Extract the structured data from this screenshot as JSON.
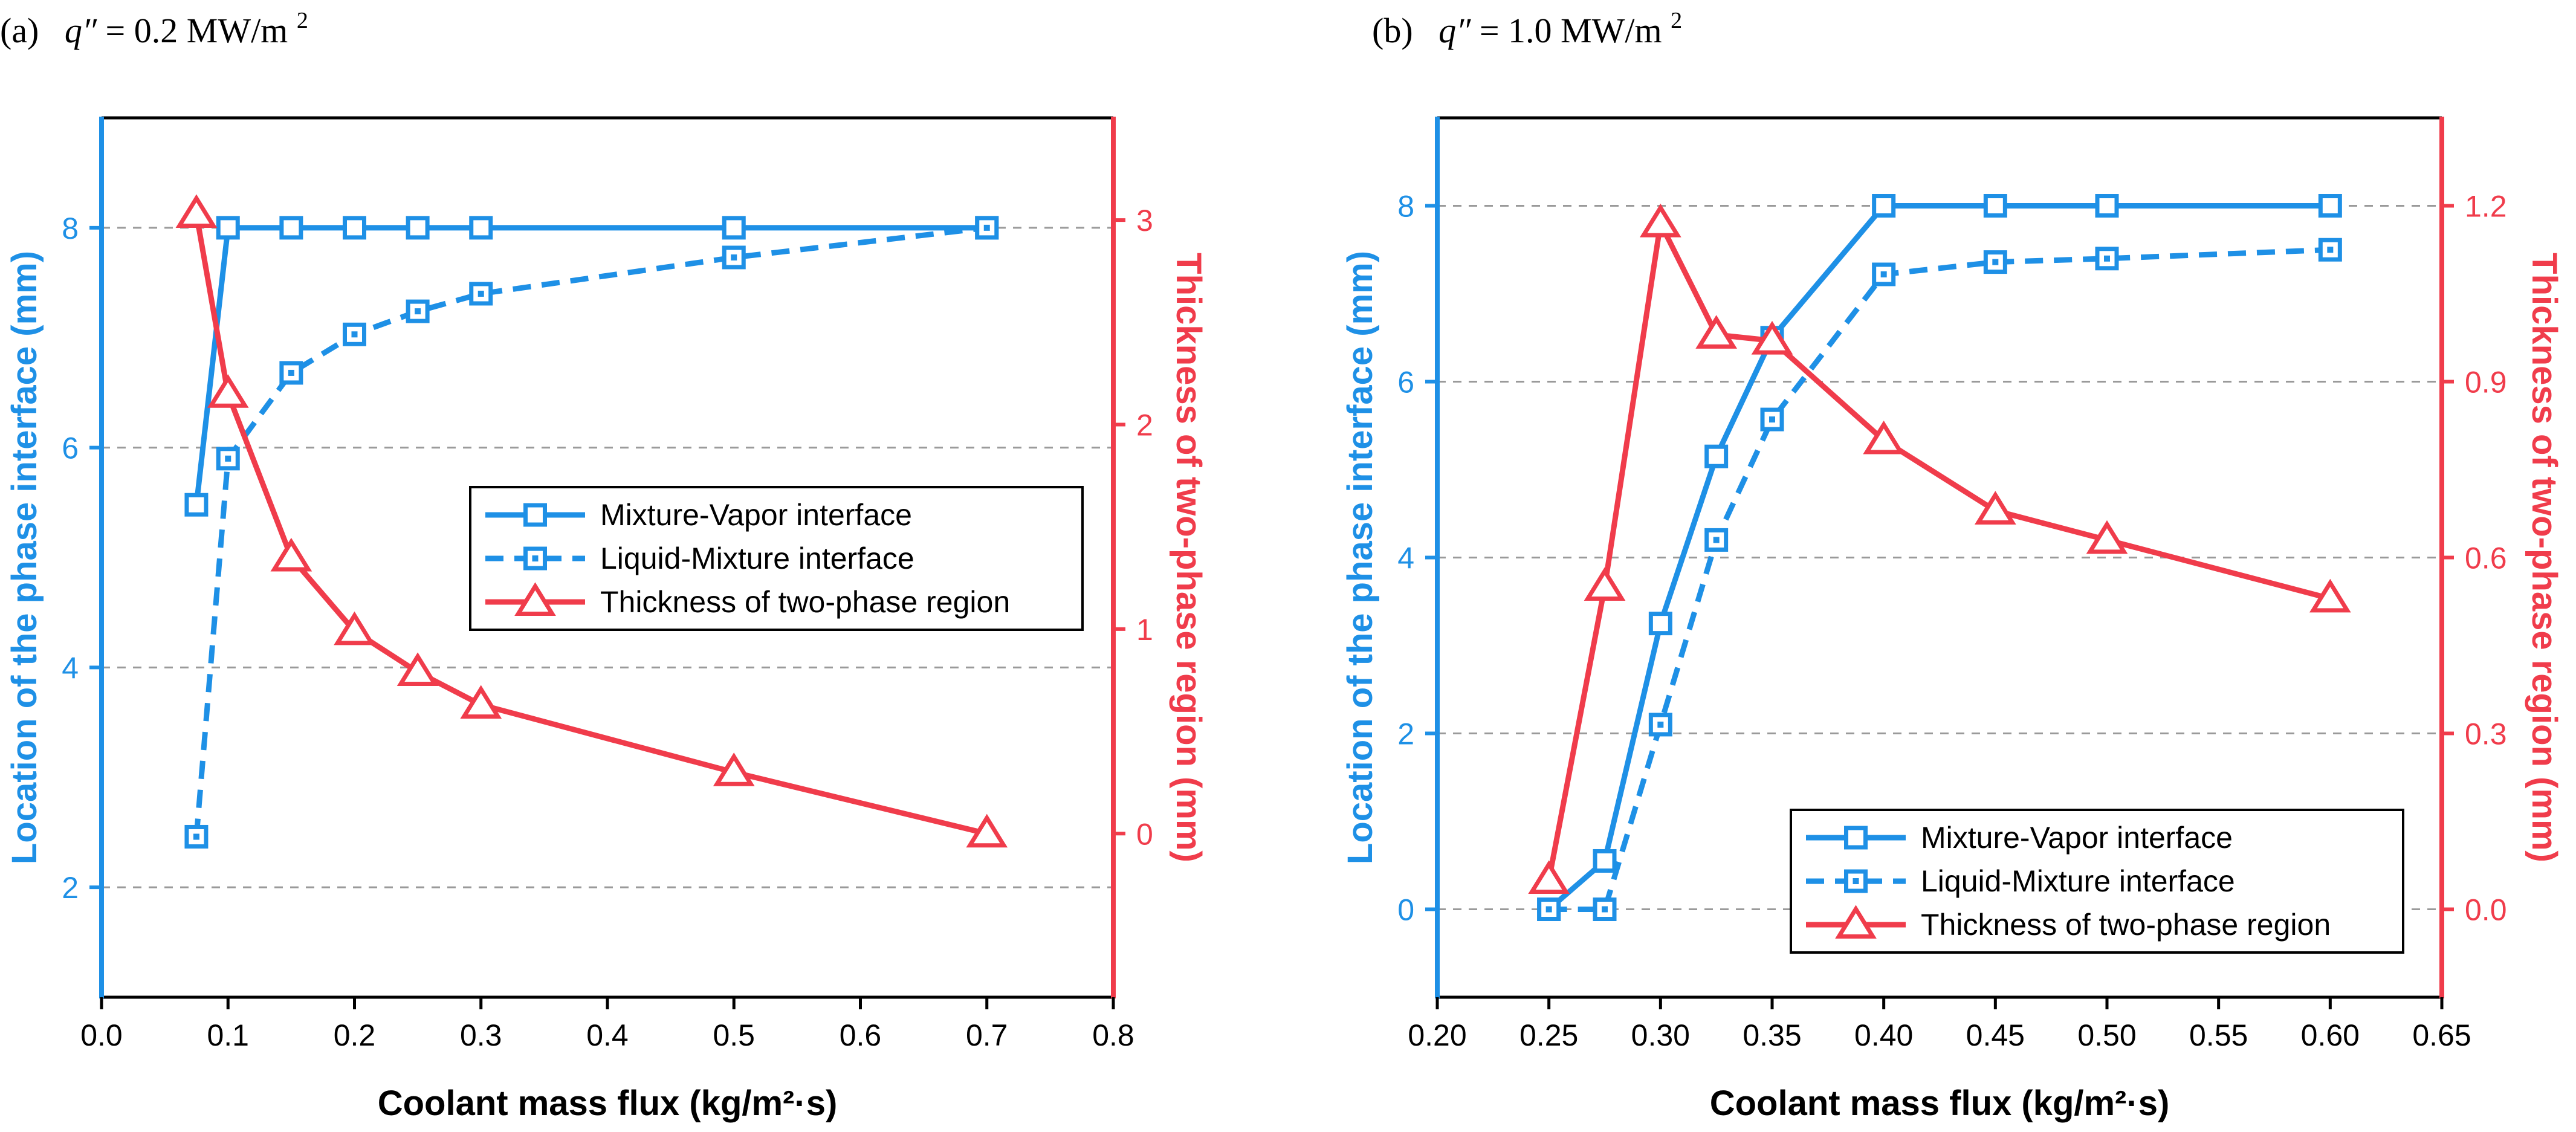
{
  "colors": {
    "blue": "#1E90E6",
    "red": "#F03C4B",
    "grid": "#9A9A9A",
    "axis": "#000000"
  },
  "panels": [
    {
      "label": "(a)",
      "condition": {
        "symbol": "q″",
        "value_text": " = 0.2 MW/m",
        "superscript": "2"
      }
    },
    {
      "label": "(b)",
      "condition": {
        "symbol": "q″",
        "value_text": " = 1.0 MW/m",
        "superscript": "2"
      }
    }
  ],
  "chart_data": [
    {
      "type": "line",
      "xlabel": "Coolant mass flux (kg/m²·s)",
      "ylabel_left": "Location of the phase interface (mm)",
      "ylabel_right": "Thickness of two-phase region (mm)",
      "xlim": [
        0.0,
        0.8
      ],
      "ylim_left": [
        1.0,
        9.0
      ],
      "ylim_right": [
        -0.8,
        3.5
      ],
      "x_ticks": [
        0.0,
        0.1,
        0.2,
        0.3,
        0.4,
        0.5,
        0.6,
        0.7,
        0.8
      ],
      "x_tick_labels": [
        "0.0",
        "0.1",
        "0.2",
        "0.3",
        "0.4",
        "0.5",
        "0.6",
        "0.7",
        "0.8"
      ],
      "y_left_ticks": [
        2,
        4,
        6,
        8
      ],
      "y_left_tick_labels": [
        "2",
        "4",
        "6",
        "8"
      ],
      "y_right_ticks": [
        0,
        1,
        2,
        3
      ],
      "y_right_tick_labels": [
        "0",
        "1",
        "2",
        "3"
      ],
      "grid": "horizontal dashed",
      "legend_position": "center-right",
      "series": [
        {
          "name": "Mixture-Vapor interface",
          "axis": "left",
          "style": "solid",
          "marker": "square",
          "x": [
            0.075,
            0.1,
            0.15,
            0.2,
            0.25,
            0.3,
            0.5,
            0.7
          ],
          "y": [
            5.48,
            8.0,
            8.0,
            8.0,
            8.0,
            8.0,
            8.0,
            8.0
          ]
        },
        {
          "name": "Liquid-Mixture interface",
          "axis": "left",
          "style": "dashed",
          "marker": "square-dot",
          "x": [
            0.075,
            0.1,
            0.15,
            0.2,
            0.25,
            0.3,
            0.5,
            0.7
          ],
          "y": [
            2.46,
            5.9,
            6.68,
            7.03,
            7.24,
            7.4,
            7.73,
            8.0
          ]
        },
        {
          "name": "Thickness of two-phase region",
          "axis": "right",
          "style": "solid",
          "marker": "triangle",
          "x": [
            0.075,
            0.1,
            0.15,
            0.2,
            0.25,
            0.3,
            0.5,
            0.7
          ],
          "y": [
            3.03,
            2.15,
            1.35,
            0.99,
            0.79,
            0.63,
            0.3,
            0.0
          ]
        }
      ]
    },
    {
      "type": "line",
      "xlabel": "Coolant mass flux (kg/m²·s)",
      "ylabel_left": "Location of the phase interface (mm)",
      "ylabel_right": "Thickness of two-phase region (mm)",
      "xlim": [
        0.2,
        0.65
      ],
      "ylim_left": [
        -1.0,
        9.0
      ],
      "ylim_right": [
        -0.15,
        1.35
      ],
      "x_ticks": [
        0.2,
        0.25,
        0.3,
        0.35,
        0.4,
        0.45,
        0.5,
        0.55,
        0.6,
        0.65
      ],
      "x_tick_labels": [
        "0.20",
        "0.25",
        "0.30",
        "0.35",
        "0.40",
        "0.45",
        "0.50",
        "0.55",
        "0.60",
        "0.65"
      ],
      "y_left_ticks": [
        0,
        2,
        4,
        6,
        8
      ],
      "y_left_tick_labels": [
        "0",
        "2",
        "4",
        "6",
        "8"
      ],
      "y_right_ticks": [
        0.0,
        0.3,
        0.6,
        0.9,
        1.2
      ],
      "y_right_tick_labels": [
        "0.0",
        "0.3",
        "0.6",
        "0.9",
        "1.2"
      ],
      "grid": "horizontal dashed",
      "legend_position": "bottom-right",
      "series": [
        {
          "name": "Mixture-Vapor interface",
          "axis": "left",
          "style": "solid",
          "marker": "square",
          "x": [
            0.25,
            0.275,
            0.3,
            0.325,
            0.35,
            0.4,
            0.45,
            0.5,
            0.6
          ],
          "y": [
            0.0,
            0.55,
            3.25,
            5.15,
            6.5,
            8.0,
            8.0,
            8.0,
            8.0
          ]
        },
        {
          "name": "Liquid-Mixture interface",
          "axis": "left",
          "style": "dashed",
          "marker": "square-dot",
          "x": [
            0.25,
            0.275,
            0.3,
            0.325,
            0.35,
            0.4,
            0.45,
            0.5,
            0.6
          ],
          "y": [
            0.0,
            0.0,
            2.1,
            4.2,
            5.57,
            7.22,
            7.36,
            7.4,
            7.5
          ]
        },
        {
          "name": "Thickness of two-phase region",
          "axis": "right",
          "style": "solid",
          "marker": "triangle",
          "x": [
            0.25,
            0.275,
            0.3,
            0.325,
            0.35,
            0.4,
            0.45,
            0.5,
            0.6
          ],
          "y": [
            0.05,
            0.55,
            1.17,
            0.98,
            0.97,
            0.8,
            0.68,
            0.63,
            0.53
          ]
        }
      ]
    }
  ]
}
